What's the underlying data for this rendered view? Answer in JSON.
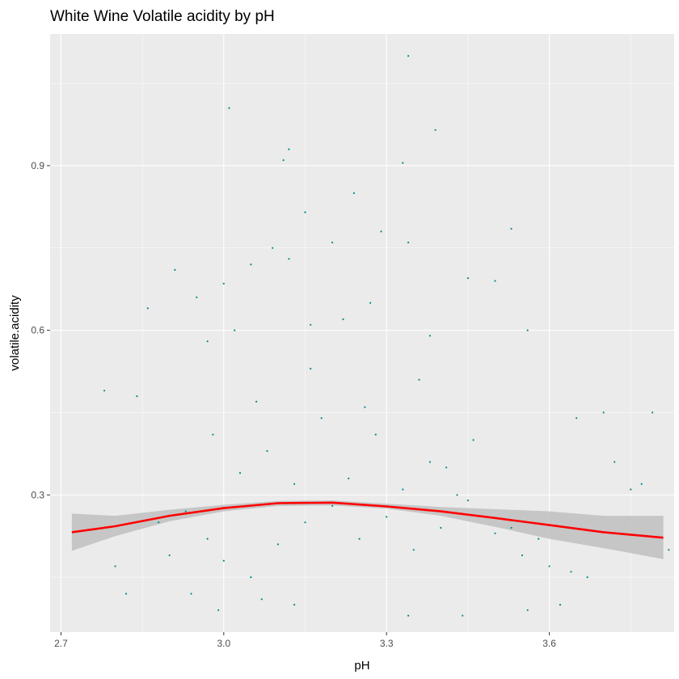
{
  "chart_data": {
    "type": "scatter",
    "title": "White Wine Volatile acidity by pH",
    "xlabel": "pH",
    "ylabel": "volatile.acidity",
    "xlim": [
      2.68,
      3.83
    ],
    "ylim": [
      0.05,
      1.14
    ],
    "x_ticks": [
      2.7,
      3.0,
      3.3,
      3.6
    ],
    "x_tick_labels": [
      "2.7",
      "3.0",
      "3.3",
      "3.6"
    ],
    "y_ticks": [
      0.3,
      0.6,
      0.9
    ],
    "y_tick_labels": [
      "0.3",
      "0.6",
      "0.9"
    ],
    "grid": true,
    "legend": "none",
    "colors": {
      "panel_background": "#ebebeb",
      "grid": "#ffffff",
      "points": "#008b8b",
      "smooth_line": "#ff0000",
      "confidence_band": "#bfbfbf"
    },
    "series": [
      {
        "type": "scatter",
        "points": [
          [
            3.01,
            1.005
          ],
          [
            3.34,
            1.1
          ],
          [
            3.39,
            0.965
          ],
          [
            3.12,
            0.93
          ],
          [
            3.11,
            0.91
          ],
          [
            3.33,
            0.905
          ],
          [
            3.15,
            0.815
          ],
          [
            3.24,
            0.85
          ],
          [
            3.53,
            0.785
          ],
          [
            3.29,
            0.78
          ],
          [
            3.2,
            0.76
          ],
          [
            3.34,
            0.76
          ],
          [
            3.09,
            0.75
          ],
          [
            3.05,
            0.72
          ],
          [
            3.12,
            0.73
          ],
          [
            2.91,
            0.71
          ],
          [
            3.45,
            0.695
          ],
          [
            3.5,
            0.69
          ],
          [
            2.86,
            0.64
          ],
          [
            3.0,
            0.685
          ],
          [
            3.27,
            0.65
          ],
          [
            3.16,
            0.61
          ],
          [
            3.02,
            0.6
          ],
          [
            2.95,
            0.66
          ],
          [
            3.56,
            0.6
          ],
          [
            2.97,
            0.58
          ],
          [
            3.38,
            0.59
          ],
          [
            3.22,
            0.62
          ],
          [
            2.78,
            0.49
          ],
          [
            2.84,
            0.48
          ],
          [
            3.7,
            0.45
          ],
          [
            3.79,
            0.45
          ],
          [
            3.65,
            0.44
          ],
          [
            3.72,
            0.36
          ],
          [
            3.75,
            0.31
          ],
          [
            3.77,
            0.32
          ],
          [
            2.8,
            0.17
          ],
          [
            2.82,
            0.12
          ],
          [
            2.97,
            0.22
          ],
          [
            3.0,
            0.18
          ],
          [
            3.05,
            0.15
          ],
          [
            3.1,
            0.21
          ],
          [
            3.15,
            0.25
          ],
          [
            3.2,
            0.28
          ],
          [
            3.25,
            0.22
          ],
          [
            3.3,
            0.26
          ],
          [
            3.35,
            0.2
          ],
          [
            3.4,
            0.24
          ],
          [
            3.45,
            0.29
          ],
          [
            3.5,
            0.23
          ],
          [
            3.55,
            0.19
          ],
          [
            3.6,
            0.17
          ],
          [
            3.64,
            0.16
          ],
          [
            3.67,
            0.15
          ],
          [
            3.62,
            0.1
          ],
          [
            3.56,
            0.09
          ],
          [
            2.94,
            0.12
          ],
          [
            3.07,
            0.11
          ],
          [
            3.13,
            0.1
          ],
          [
            3.34,
            0.08
          ],
          [
            3.44,
            0.08
          ],
          [
            2.99,
            0.09
          ],
          [
            3.82,
            0.2
          ],
          [
            3.18,
            0.44
          ],
          [
            3.28,
            0.41
          ],
          [
            3.08,
            0.38
          ],
          [
            3.38,
            0.36
          ],
          [
            3.03,
            0.34
          ],
          [
            3.23,
            0.33
          ],
          [
            3.13,
            0.32
          ],
          [
            3.33,
            0.31
          ],
          [
            3.43,
            0.3
          ],
          [
            2.93,
            0.27
          ],
          [
            3.48,
            0.26
          ],
          [
            2.88,
            0.25
          ],
          [
            3.53,
            0.24
          ],
          [
            3.58,
            0.22
          ],
          [
            2.9,
            0.19
          ],
          [
            3.06,
            0.47
          ],
          [
            3.26,
            0.46
          ],
          [
            3.16,
            0.53
          ],
          [
            3.36,
            0.51
          ],
          [
            3.46,
            0.4
          ],
          [
            2.98,
            0.41
          ],
          [
            3.41,
            0.35
          ]
        ]
      },
      {
        "type": "smooth",
        "name": "",
        "x": [
          2.72,
          2.8,
          2.9,
          3.0,
          3.1,
          3.2,
          3.3,
          3.4,
          3.5,
          3.6,
          3.7,
          3.81
        ],
        "y": [
          0.232,
          0.243,
          0.262,
          0.276,
          0.285,
          0.286,
          0.279,
          0.27,
          0.258,
          0.245,
          0.232,
          0.222
        ],
        "lower": [
          0.198,
          0.225,
          0.252,
          0.27,
          0.28,
          0.281,
          0.275,
          0.262,
          0.242,
          0.22,
          0.203,
          0.183
        ],
        "upper": [
          0.266,
          0.262,
          0.273,
          0.282,
          0.289,
          0.29,
          0.284,
          0.278,
          0.274,
          0.27,
          0.262,
          0.262
        ]
      }
    ]
  }
}
